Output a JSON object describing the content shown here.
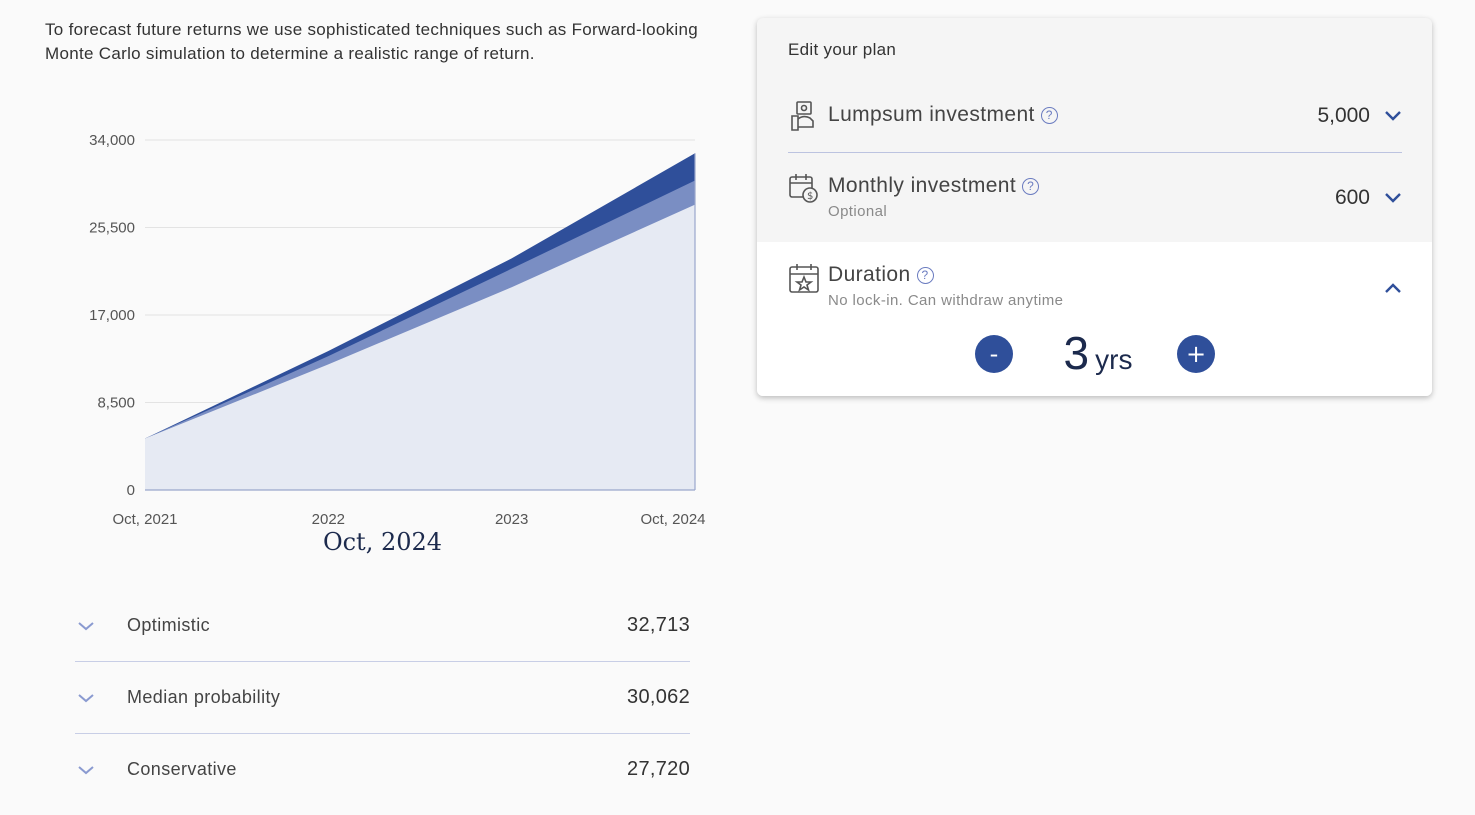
{
  "intro_text": "To forecast future returns we use sophisticated techniques such as Forward-looking Monte Carlo simulation to determine a realistic range of return.",
  "chart_data": {
    "type": "area",
    "x": [
      "Oct, 2021",
      "2022",
      "2023",
      "Oct, 2024"
    ],
    "x_tick_labels": [
      "Oct, 2021",
      "2022",
      "2023",
      "Oct, 2024"
    ],
    "y_tick_labels": [
      "34,000",
      "25,500",
      "17,000",
      "8,500",
      "0"
    ],
    "ylim": [
      0,
      34000
    ],
    "grid": true,
    "series": [
      {
        "name": "Optimistic",
        "values": [
          5000,
          13500,
          22500,
          32713
        ],
        "color": "#2f4f9a"
      },
      {
        "name": "Median probability",
        "values": [
          5000,
          13000,
          21500,
          30062
        ],
        "color": "#7a8ec3"
      },
      {
        "name": "Conservative",
        "values": [
          5000,
          12200,
          19700,
          27720
        ],
        "color": "#e6eaf3"
      }
    ]
  },
  "selected_date": "Oct, 2024",
  "outcomes": [
    {
      "label": "Optimistic",
      "value": "32,713"
    },
    {
      "label": "Median probability",
      "value": "30,062"
    },
    {
      "label": "Conservative",
      "value": "27,720"
    }
  ],
  "plan": {
    "title": "Edit your plan",
    "lumpsum": {
      "label": "Lumpsum investment",
      "value": "5,000"
    },
    "monthly": {
      "label": "Monthly investment",
      "sublabel": "Optional",
      "value": "600"
    },
    "duration": {
      "label": "Duration",
      "sublabel": "No lock-in. Can withdraw anytime",
      "value": "3",
      "unit": "yrs",
      "minus": "-",
      "plus": "+"
    },
    "help_glyph": "?"
  },
  "colors": {
    "accent": "#2f4f9a",
    "mid": "#7a8ec3",
    "light": "#e6eaf3",
    "divider": "#c8cee6"
  }
}
